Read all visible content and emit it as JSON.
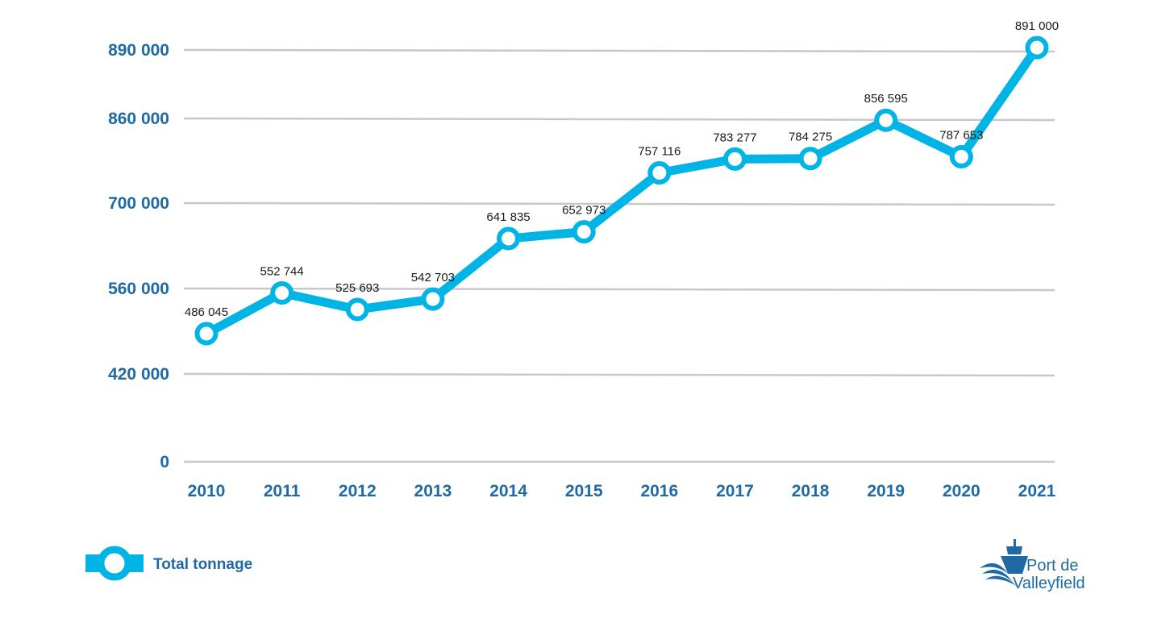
{
  "chart_data": {
    "type": "line",
    "title": "",
    "xlabel": "",
    "ylabel": "",
    "categories": [
      "2010",
      "2011",
      "2012",
      "2013",
      "2014",
      "2015",
      "2016",
      "2017",
      "2018",
      "2019",
      "2020",
      "2021"
    ],
    "series": [
      {
        "name": "Total tonnage",
        "values": [
          486045,
          552744,
          525693,
          542703,
          641835,
          652973,
          757116,
          783277,
          784275,
          856595,
          787653,
          891000
        ],
        "value_labels": [
          "486 045",
          "552 744",
          "525 693",
          "542 703",
          "641 835",
          "652 973",
          "757 116",
          "783 277",
          "784 275",
          "856 595",
          "787 653",
          "891 000"
        ]
      }
    ],
    "y_ticks": [
      {
        "value": 0,
        "label": "0"
      },
      {
        "value": 420000,
        "label": "420 000"
      },
      {
        "value": 560000,
        "label": "560 000"
      },
      {
        "value": 700000,
        "label": "700 000"
      },
      {
        "value": 860000,
        "label": "860 000"
      },
      {
        "value": 890000,
        "label": "890 000"
      }
    ],
    "grid": true,
    "legend_position": "bottom-left",
    "colors": {
      "line": "#00b4e6",
      "axis_text": "#1f6aa5",
      "grid": "#c8c8c8"
    }
  },
  "legend": {
    "label": "Total tonnage"
  },
  "logo": {
    "line1": "Port de",
    "line2": "Valleyfield"
  }
}
